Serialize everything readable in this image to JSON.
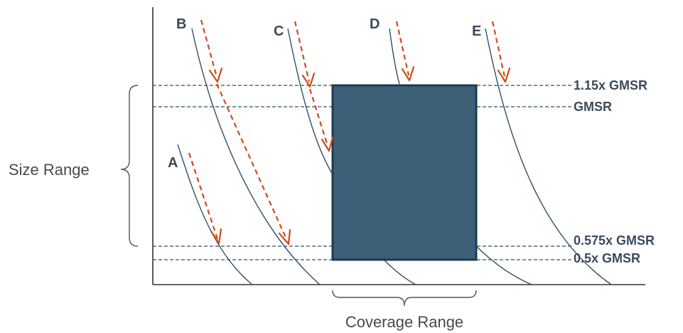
{
  "colors": {
    "curve": "#2f5068",
    "arrow": "#d04a1a",
    "coverage_box": "#3b6078",
    "label": "#3a4a5e"
  },
  "curves": [
    {
      "label": "A"
    },
    {
      "label": "B"
    },
    {
      "label": "C"
    },
    {
      "label": "D"
    },
    {
      "label": "E"
    }
  ],
  "levels": [
    {
      "label": "1.15x GMSR"
    },
    {
      "label": "GMSR"
    },
    {
      "label": "0.575x GMSR"
    },
    {
      "label": "0.5x GMSR"
    }
  ],
  "size_range_label": "Size Range",
  "coverage_range_label": "Coverage Range"
}
